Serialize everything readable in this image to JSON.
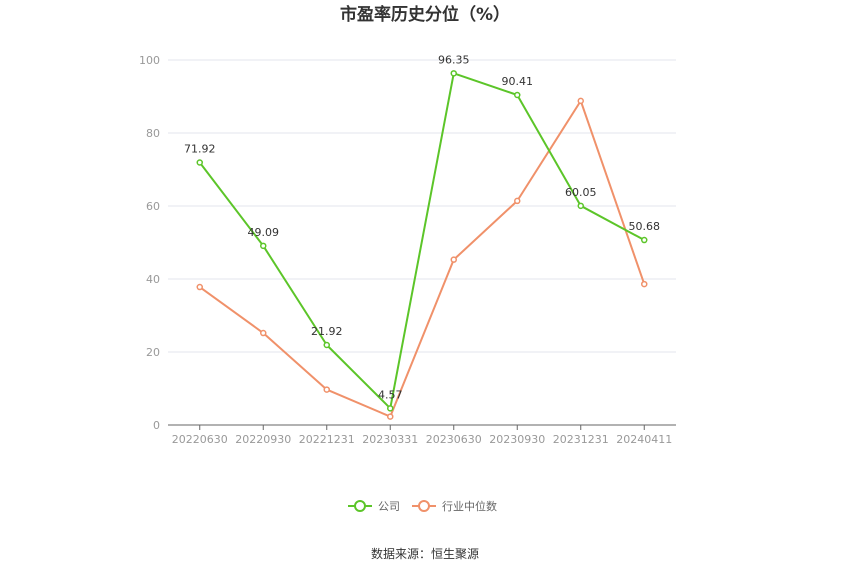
{
  "chart_data": {
    "type": "line",
    "title": "市盈率历史分位（%）",
    "x": [
      "20220630",
      "20220930",
      "20221231",
      "20230331",
      "20230630",
      "20230930",
      "20231231",
      "20240411"
    ],
    "ylim": [
      0,
      100
    ],
    "yticks": [
      0,
      20,
      40,
      60,
      80,
      100
    ],
    "grid": true,
    "legend_position": "bottom-center",
    "series": [
      {
        "name": "公司",
        "color": "#5cc529",
        "values": [
          71.92,
          49.09,
          21.92,
          4.57,
          96.35,
          90.41,
          60.05,
          50.68
        ],
        "labels": [
          "71.92",
          "49.09",
          "21.92",
          "4.57",
          "96.35",
          "90.41",
          "60.05",
          "50.68"
        ]
      },
      {
        "name": "行业中位数",
        "color": "#f0916a",
        "values": [
          37.8,
          25.2,
          9.7,
          2.3,
          45.3,
          61.4,
          88.8,
          38.6
        ]
      }
    ]
  },
  "source_text": "数据来源：恒生聚源"
}
